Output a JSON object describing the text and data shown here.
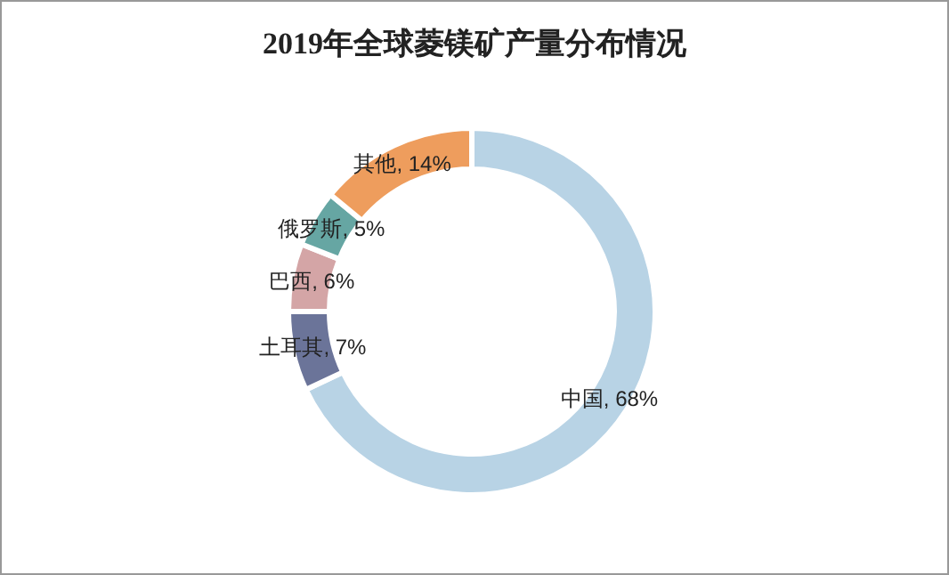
{
  "chart_data": {
    "type": "donut",
    "title": "2019年全球菱镁矿产量分布情况",
    "categories": [
      "中国",
      "土耳其",
      "巴西",
      "俄罗斯",
      "其他"
    ],
    "values": [
      68,
      7,
      6,
      5,
      14
    ],
    "colors": [
      "#b8d3e5",
      "#6b7499",
      "#d4a5a6",
      "#66a6a3",
      "#ee9d5d"
    ],
    "value_labels": [
      "68%",
      "7%",
      "6%",
      "5%",
      "14%"
    ],
    "legend": false
  }
}
